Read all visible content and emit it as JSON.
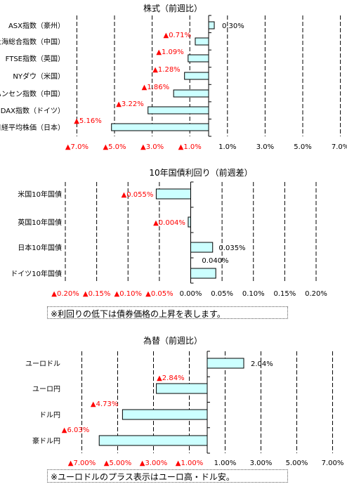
{
  "chart_data": [
    {
      "type": "bar",
      "orientation": "horizontal",
      "title": "株式（前週比）",
      "categories": [
        "ASX指数（豪州）",
        "上海総合指数（中国）",
        "FTSE指数（英国）",
        "NYダウ（米国）",
        "香港ハンセン指数（中国）",
        "DAX指数（ドイツ）",
        "日経平均株価（日本）"
      ],
      "values": [
        0.3,
        -0.71,
        -1.09,
        -1.28,
        -1.86,
        -3.22,
        -5.16
      ],
      "value_labels": [
        "0.30%",
        "▲0.71%",
        "▲1.09%",
        "▲1.28%",
        "▲1.86%",
        "▲3.22%",
        "▲5.16%"
      ],
      "xlim": [
        -7.5,
        7.5
      ],
      "tick_values": [
        -7,
        -5,
        -3,
        -1,
        1,
        3,
        5,
        7
      ],
      "tick_labels": [
        "▲7.0%",
        "▲5.0%",
        "▲3.0%",
        "▲1.0%",
        "1.0%",
        "3.0%",
        "5.0%",
        "7.0%"
      ],
      "grid": true,
      "legend": "none"
    },
    {
      "type": "bar",
      "orientation": "horizontal",
      "title": "10年国債利回り（前週差）",
      "categories": [
        "米国10年国債",
        "英国10年国債",
        "日本10年国債",
        "ドイツ10年国債"
      ],
      "values": [
        -0.055,
        -0.004,
        0.035,
        0.04
      ],
      "value_labels": [
        "▲0.055%",
        "▲0.004%",
        "0.035%",
        "0.040%"
      ],
      "xlim": [
        -0.2,
        0.2
      ],
      "tick_values": [
        -0.2,
        -0.15,
        -0.1,
        -0.05,
        0,
        0.05,
        0.1,
        0.15,
        0.2
      ],
      "tick_labels": [
        "▲0.20%",
        "▲0.15%",
        "▲0.10%",
        "▲0.05%",
        "0.00%",
        "0.05%",
        "0.10%",
        "0.15%",
        "0.20%"
      ],
      "grid": true,
      "legend": "none",
      "note": "※利回りの低下は債券価格の上昇を表します。"
    },
    {
      "type": "bar",
      "orientation": "horizontal",
      "title": "為替（前週比）",
      "categories": [
        "ユーロドル",
        "ユーロ円",
        "ドル円",
        "豪ドル円"
      ],
      "values": [
        2.04,
        -2.84,
        -4.73,
        -6.03
      ],
      "value_labels": [
        "2.04%",
        "▲2.84%",
        "▲4.73%",
        "▲6.03%"
      ],
      "xlim": [
        -8,
        8
      ],
      "tick_values": [
        -7,
        -5,
        -3,
        -1,
        1,
        3,
        5,
        7
      ],
      "tick_labels": [
        "▲7.00%",
        "▲5.00%",
        "▲3.00%",
        "▲1.00%",
        "1.00%",
        "3.00%",
        "5.00%",
        "7.00%"
      ],
      "grid": true,
      "legend": "none",
      "note": "※ユーロドルのプラス表示はユーロ高・ドル安。"
    }
  ],
  "colors": {
    "bar_fill": "#ccffff",
    "bar_stroke": "#000000",
    "negative_text": "#ff0000",
    "positive_text": "#000000",
    "grid": "#000000"
  }
}
